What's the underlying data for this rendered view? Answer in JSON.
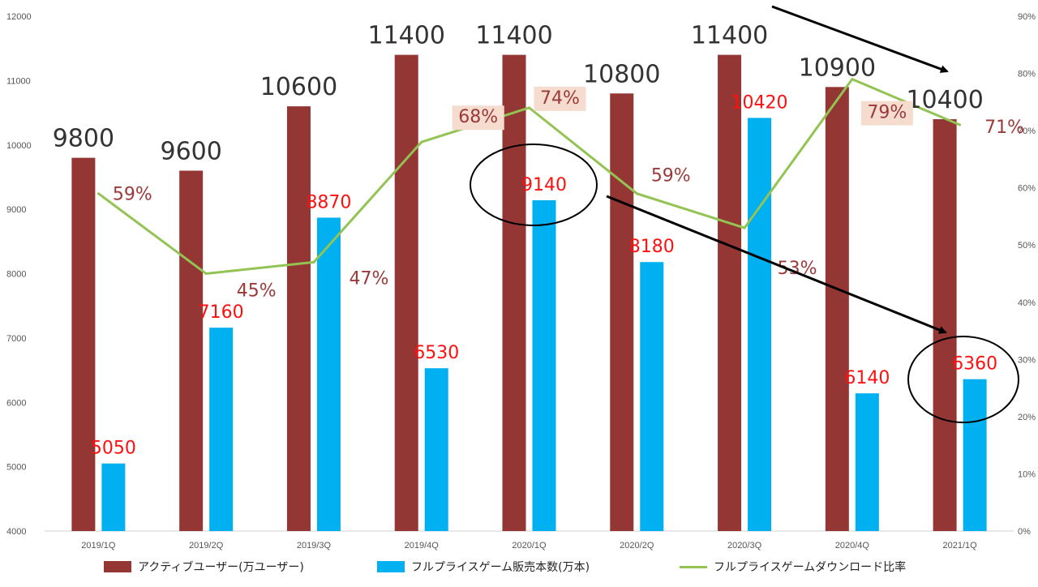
{
  "chart_data": {
    "type": "bar",
    "categories": [
      "2019/1Q",
      "2019/2Q",
      "2019/3Q",
      "2019/4Q",
      "2020/1Q",
      "2020/2Q",
      "2020/3Q",
      "2020/4Q",
      "2021/1Q"
    ],
    "series": [
      {
        "name": "アクティブユーザー(万ユーザー)",
        "type": "bar",
        "axis": "left",
        "color": "#943634",
        "values": [
          9800,
          9600,
          10600,
          11400,
          11400,
          10800,
          11400,
          10900,
          10400
        ],
        "labels": [
          "9800",
          "9600",
          "10600",
          "11400",
          "11400",
          "10800",
          "11400",
          "10900",
          "10400"
        ]
      },
      {
        "name": "フルプライスゲーム販売本数(万本)",
        "type": "bar",
        "axis": "left",
        "color": "#00b0f0",
        "values": [
          5050,
          7160,
          8870,
          6530,
          9140,
          8180,
          10420,
          6140,
          6360
        ],
        "labels": [
          "5050",
          "7160",
          "8870",
          "6530",
          "9140",
          "8180",
          "10420",
          "6140",
          "6360"
        ]
      },
      {
        "name": "フルプライスゲームダウンロード比率",
        "type": "line",
        "axis": "right",
        "color": "#92c353",
        "values": [
          59,
          45,
          47,
          68,
          74,
          59,
          53,
          79,
          71
        ],
        "labels": [
          "59%",
          "45%",
          "47%",
          "68%",
          "74%",
          "59%",
          "53%",
          "79%",
          "71%"
        ]
      }
    ],
    "ylim": [
      4000,
      12000
    ],
    "y_ticks": [
      "4000",
      "5000",
      "6000",
      "7000",
      "8000",
      "9000",
      "10000",
      "11000",
      "12000"
    ],
    "y2lim": [
      0,
      90
    ],
    "y2_ticks": [
      "0%",
      "10%",
      "20%",
      "30%",
      "40%",
      "50%",
      "60%",
      "70%",
      "80%",
      "90%"
    ],
    "legend_position": "bottom",
    "grid": false,
    "annotations": [
      "arrow from top toward 2021/1Q",
      "circle around 2020/1Q sales label",
      "arrow from 2020/1Q to 2021/1Q",
      "circle around 2021/1Q sales label"
    ]
  }
}
